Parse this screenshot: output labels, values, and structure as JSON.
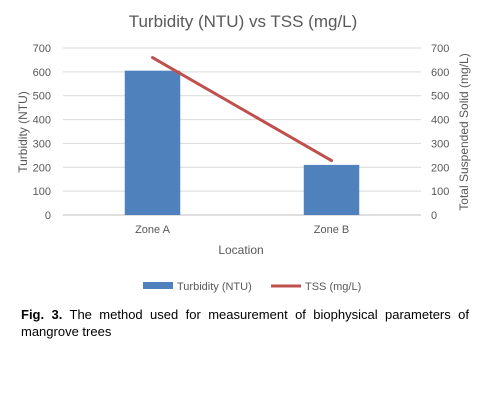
{
  "chart_data": {
    "type": "bar",
    "title": "Turbidity (NTU) vs TSS (mg/L)",
    "categories": [
      "Zone A",
      "Zone B"
    ],
    "xlabel": "Location",
    "ylabel_left": "Turbidity (NTU)",
    "ylabel_right": "Total Suspended Solid (mg/L)",
    "ylim_left": [
      0,
      700
    ],
    "ylim_right": [
      0,
      700
    ],
    "y_ticks": [
      0,
      100,
      200,
      300,
      400,
      500,
      600,
      700
    ],
    "grid": true,
    "legend_position": "bottom",
    "series": [
      {
        "name": "Turbidity (NTU)",
        "type": "bar",
        "axis": "left",
        "color": "#4f81bd",
        "values": [
          605,
          210
        ]
      },
      {
        "name": "TSS (mg/L)",
        "type": "line",
        "axis": "right",
        "color": "#c0504d",
        "values": [
          660,
          228
        ]
      }
    ]
  },
  "caption": {
    "label": "Fig. 3.",
    "text": " The method used for measurement of biophysical parameters of mangrove trees"
  }
}
